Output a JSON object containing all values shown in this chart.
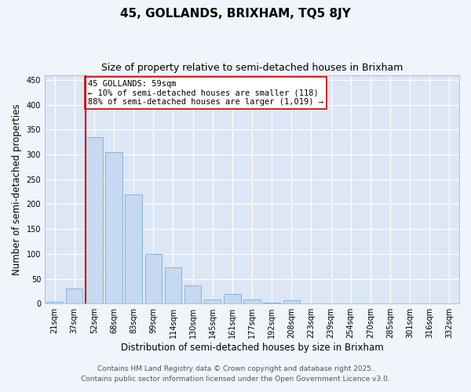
{
  "title": "45, GOLLANDS, BRIXHAM, TQ5 8JY",
  "subtitle": "Size of property relative to semi-detached houses in Brixham",
  "xlabel": "Distribution of semi-detached houses by size in Brixham",
  "ylabel": "Number of semi-detached properties",
  "categories": [
    "21sqm",
    "37sqm",
    "52sqm",
    "68sqm",
    "83sqm",
    "99sqm",
    "114sqm",
    "130sqm",
    "145sqm",
    "161sqm",
    "177sqm",
    "192sqm",
    "208sqm",
    "223sqm",
    "239sqm",
    "254sqm",
    "270sqm",
    "285sqm",
    "301sqm",
    "316sqm",
    "332sqm"
  ],
  "values": [
    3,
    31,
    335,
    305,
    220,
    100,
    73,
    36,
    9,
    19,
    9,
    2,
    6,
    1,
    0,
    0,
    1,
    0,
    0,
    0,
    0
  ],
  "bar_color": "#c5d9f0",
  "bar_edge_color": "#7aadd4",
  "vline_x_idx": 2,
  "vline_color": "#cc0000",
  "annotation_text": "45 GOLLANDS: 59sqm\n← 10% of semi-detached houses are smaller (118)\n88% of semi-detached houses are larger (1,019) →",
  "annotation_box_color": "#ffffff",
  "annotation_box_edge": "#cc0000",
  "ylim": [
    0,
    460
  ],
  "yticks": [
    0,
    50,
    100,
    150,
    200,
    250,
    300,
    350,
    400,
    450
  ],
  "footer_line1": "Contains HM Land Registry data © Crown copyright and database right 2025.",
  "footer_line2": "Contains public sector information licensed under the Open Government Licence v3.0.",
  "bg_color": "#f0f4fb",
  "plot_bg_color": "#dce6f5",
  "title_fontsize": 11,
  "subtitle_fontsize": 9,
  "axis_label_fontsize": 8.5,
  "tick_fontsize": 7,
  "footer_fontsize": 6.5,
  "annotation_fontsize": 7.5
}
